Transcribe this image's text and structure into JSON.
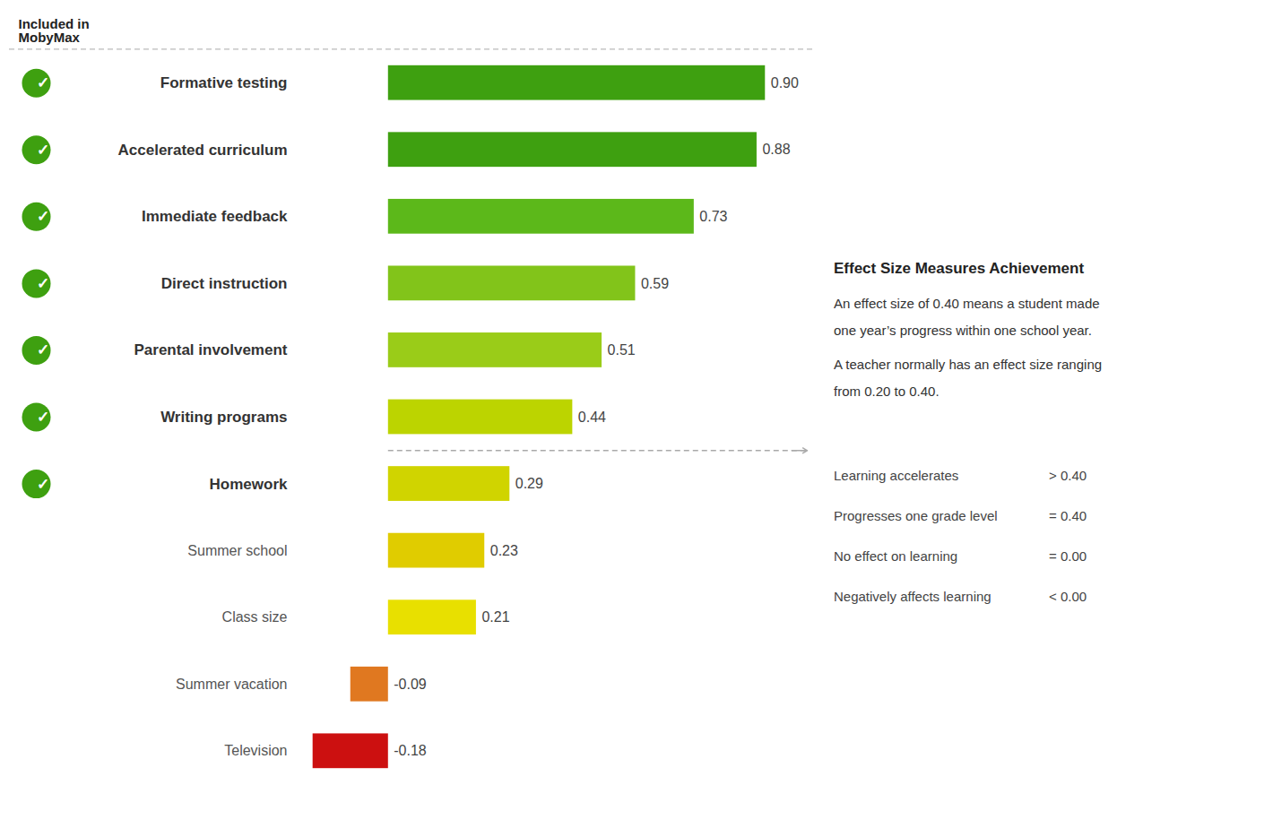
{
  "chart_data": {
    "type": "bar",
    "orientation": "horizontal",
    "categories": [
      "Formative testing",
      "Accelerated curriculum",
      "Immediate feedback",
      "Direct instruction",
      "Parental involvement",
      "Writing programs",
      "Homework",
      "Summer school",
      "Class size",
      "Summer vacation",
      "Television"
    ],
    "values": [
      0.9,
      0.88,
      0.73,
      0.59,
      0.51,
      0.44,
      0.29,
      0.23,
      0.21,
      -0.09,
      -0.18
    ],
    "value_labels": [
      "0.90",
      "0.88",
      "0.73",
      "0.59",
      "0.51",
      "0.44",
      "0.29",
      "0.23",
      "0.21",
      "-0.09",
      "-0.18"
    ],
    "colors": [
      "#3ea010",
      "#3ea010",
      "#5cb81a",
      "#82c41a",
      "#9acc18",
      "#bcd400",
      "#d0d400",
      "#e0cc00",
      "#e8e000",
      "#e07820",
      "#cc1010"
    ],
    "xlim": [
      -0.22,
      1.0
    ],
    "data_labels": true,
    "tick_labels": false,
    "grid": false,
    "annotations": [
      {
        "kind": "header",
        "text": "Included in\nMobyMax"
      },
      {
        "kind": "check",
        "text": "✓",
        "category": "Formative testing",
        "color": "#3ea010"
      },
      {
        "kind": "check",
        "text": "✓",
        "category": "Accelerated curriculum",
        "color": "#3ea010"
      },
      {
        "kind": "check",
        "text": "✓",
        "category": "Immediate feedback",
        "color": "#3ea010"
      },
      {
        "kind": "check",
        "text": "✓",
        "category": "Direct instruction",
        "color": "#3ea010"
      },
      {
        "kind": "check",
        "text": "✓",
        "category": "Parental involvement",
        "color": "#3ea010"
      },
      {
        "kind": "check",
        "text": "✓",
        "category": "Writing programs",
        "color": "#3ea010"
      },
      {
        "kind": "check",
        "text": "✓",
        "category": "Homework",
        "color": "#3ea010"
      },
      {
        "kind": "panel_title",
        "text": "Effect Size Measures Achievement"
      },
      {
        "kind": "panel_text",
        "text": "An effect size of 0.40 means a student made"
      },
      {
        "kind": "panel_text",
        "text": "one year’s progress within one school year."
      },
      {
        "kind": "panel_text",
        "text": "A teacher normally has an effect size ranging"
      },
      {
        "kind": "panel_text",
        "text": "from 0.20 to 0.40."
      },
      {
        "kind": "key",
        "text": "Learning accelerates",
        "value_text": "> 0.40"
      },
      {
        "kind": "key",
        "text": "Progresses one grade level",
        "value_text": "= 0.40"
      },
      {
        "kind": "key",
        "text": "No effect on learning",
        "value_text": "= 0.00"
      },
      {
        "kind": "key",
        "text": "Negatively affects learning",
        "value_text": "< 0.00"
      }
    ]
  }
}
